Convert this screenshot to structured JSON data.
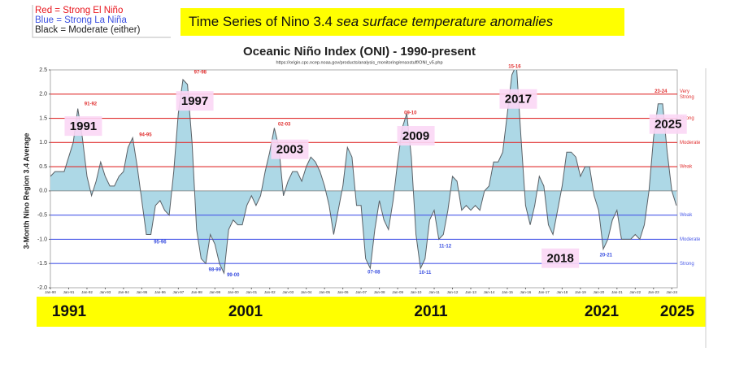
{
  "legend_box": {
    "items": [
      {
        "text": "Red = Strong El Niño",
        "color": "#e8141c"
      },
      {
        "text": "Blue = Strong La Niña",
        "color": "#3a4fe0"
      },
      {
        "text": "Black = Moderate (either)",
        "color": "#222222"
      }
    ]
  },
  "banner": {
    "text": "Time Series of Nino 3.4 ",
    "italic": "sea surface temperature anomalies"
  },
  "chart_data": {
    "type": "area",
    "title": "Oceanic Niño Index (ONI) - 1990-present",
    "subtitle": "https://origin.cpc.ncep.noaa.gov/products/analysis_monitoring/ensostuff/ONI_v5.php",
    "y_label": "3-Month Nino Region 3.4 Average",
    "color": "#add8e6",
    "line_color": "#5a6066",
    "x": [
      1990,
      1990.25,
      1990.5,
      1990.75,
      1991,
      1991.25,
      1991.5,
      1991.75,
      1992,
      1992.25,
      1992.5,
      1992.75,
      1993,
      1993.25,
      1993.5,
      1993.75,
      1994,
      1994.25,
      1994.5,
      1994.75,
      1995,
      1995.25,
      1995.5,
      1995.75,
      1996,
      1996.25,
      1996.5,
      1996.75,
      1997,
      1997.25,
      1997.5,
      1997.75,
      1998,
      1998.25,
      1998.5,
      1998.75,
      1999,
      1999.25,
      1999.5,
      1999.75,
      2000,
      2000.25,
      2000.5,
      2000.75,
      2001,
      2001.25,
      2001.5,
      2001.75,
      2002,
      2002.25,
      2002.5,
      2002.75,
      2003,
      2003.25,
      2003.5,
      2003.75,
      2004,
      2004.25,
      2004.5,
      2004.75,
      2005,
      2005.25,
      2005.5,
      2005.75,
      2006,
      2006.25,
      2006.5,
      2006.75,
      2007,
      2007.25,
      2007.5,
      2007.75,
      2008,
      2008.25,
      2008.5,
      2008.75,
      2009,
      2009.25,
      2009.5,
      2009.75,
      2010,
      2010.25,
      2010.5,
      2010.75,
      2011,
      2011.25,
      2011.5,
      2011.75,
      2012,
      2012.25,
      2012.5,
      2012.75,
      2013,
      2013.25,
      2013.5,
      2013.75,
      2014,
      2014.25,
      2014.5,
      2014.75,
      2015,
      2015.25,
      2015.5,
      2015.75,
      2016,
      2016.25,
      2016.5,
      2016.75,
      2017,
      2017.25,
      2017.5,
      2017.75,
      2018,
      2018.25,
      2018.5,
      2018.75,
      2019,
      2019.25,
      2019.5,
      2019.75,
      2020,
      2020.25,
      2020.5,
      2020.75,
      2021,
      2021.25,
      2021.5,
      2021.75,
      2022,
      2022.25,
      2022.5,
      2022.75,
      2023,
      2023.25,
      2023.5,
      2023.75,
      2024,
      2024.25
    ],
    "values": [
      0.3,
      0.4,
      0.4,
      0.4,
      0.7,
      1.0,
      1.7,
      1.1,
      0.3,
      -0.1,
      0.2,
      0.6,
      0.3,
      0.1,
      0.1,
      0.3,
      0.4,
      0.9,
      1.1,
      0.5,
      -0.2,
      -0.9,
      -0.9,
      -0.3,
      -0.2,
      -0.4,
      -0.5,
      0.4,
      1.6,
      2.3,
      2.2,
      1.0,
      -0.8,
      -1.4,
      -1.5,
      -0.9,
      -1.1,
      -1.5,
      -1.7,
      -0.8,
      -0.6,
      -0.7,
      -0.7,
      -0.3,
      -0.1,
      -0.3,
      -0.1,
      0.4,
      0.8,
      1.3,
      0.9,
      -0.1,
      0.2,
      0.4,
      0.4,
      0.2,
      0.5,
      0.7,
      0.6,
      0.4,
      0.1,
      -0.3,
      -0.9,
      -0.4,
      0.1,
      0.9,
      0.7,
      -0.3,
      -0.3,
      -1.4,
      -1.6,
      -0.8,
      -0.2,
      -0.6,
      -0.8,
      -0.2,
      0.6,
      1.3,
      1.6,
      0.7,
      -0.9,
      -1.6,
      -1.4,
      -0.6,
      -0.4,
      -1.0,
      -0.9,
      -0.4,
      0.3,
      0.2,
      -0.4,
      -0.3,
      -0.4,
      -0.3,
      -0.4,
      0.0,
      0.1,
      0.6,
      0.6,
      0.8,
      1.6,
      2.4,
      2.6,
      1.1,
      -0.3,
      -0.7,
      -0.3,
      0.3,
      0.1,
      -0.7,
      -0.9,
      -0.4,
      0.1,
      0.8,
      0.8,
      0.7,
      0.3,
      0.5,
      0.5,
      -0.1,
      -0.4,
      -1.2,
      -1.0,
      -0.6,
      -0.4,
      -1.0,
      -1.0,
      -1.0,
      -0.9,
      -1.0,
      -0.7,
      0.0,
      1.1,
      1.8,
      1.8,
      0.8,
      0.0,
      -0.3
    ],
    "xlim": [
      1990,
      2024.3
    ],
    "xticks": [
      {
        "value": 1990,
        "label": "Jan-90"
      },
      {
        "value": 1991,
        "label": "Jan-91"
      },
      {
        "value": 1992,
        "label": "Jan-92"
      },
      {
        "value": 1993,
        "label": "Jan-93"
      },
      {
        "value": 1994,
        "label": "Jan-94"
      },
      {
        "value": 1995,
        "label": "Jan-95"
      },
      {
        "value": 1996,
        "label": "Jan-96"
      },
      {
        "value": 1997,
        "label": "Jan-97"
      },
      {
        "value": 1998,
        "label": "Jan-98"
      },
      {
        "value": 1999,
        "label": "Jan-99"
      },
      {
        "value": 2000,
        "label": "Jan-00"
      },
      {
        "value": 2001,
        "label": "Jan-01"
      },
      {
        "value": 2002,
        "label": "Jan-02"
      },
      {
        "value": 2003,
        "label": "Jan-03"
      },
      {
        "value": 2004,
        "label": "Jan-04"
      },
      {
        "value": 2005,
        "label": "Jan-05"
      },
      {
        "value": 2006,
        "label": "Jan-06"
      },
      {
        "value": 2007,
        "label": "Jan-07"
      },
      {
        "value": 2008,
        "label": "Jan-08"
      },
      {
        "value": 2009,
        "label": "Jan-09"
      },
      {
        "value": 2010,
        "label": "Jan-10"
      },
      {
        "value": 2011,
        "label": "Jan-11"
      },
      {
        "value": 2012,
        "label": "Jan-12"
      },
      {
        "value": 2013,
        "label": "Jan-13"
      },
      {
        "value": 2014,
        "label": "Jan-14"
      },
      {
        "value": 2015,
        "label": "Jan-15"
      },
      {
        "value": 2016,
        "label": "Jan-16"
      },
      {
        "value": 2017,
        "label": "Jan-17"
      },
      {
        "value": 2018,
        "label": "Jan-18"
      },
      {
        "value": 2019,
        "label": "Jan-19"
      },
      {
        "value": 2020,
        "label": "Jan-20"
      },
      {
        "value": 2021,
        "label": "Jan-21"
      },
      {
        "value": 2022,
        "label": "Jan-22"
      },
      {
        "value": 2023,
        "label": "Jan-23"
      },
      {
        "value": 2024,
        "label": "Jan-24"
      }
    ],
    "ylim": [
      -2,
      2.5
    ],
    "yticks": [
      2.5,
      {
        "value": 2,
        "label": "2.0"
      },
      1.5,
      {
        "value": 1,
        "label": "1.0"
      },
      0.5,
      {
        "value": 0,
        "label": "0.0"
      },
      -0.5,
      {
        "value": -1,
        "label": "-1.0"
      },
      -1.5,
      {
        "value": -2,
        "label": "-2.0"
      }
    ],
    "reference_lines": [
      {
        "value": 2.0,
        "color": "#e03030",
        "label": [
          "Very",
          "Strong"
        ]
      },
      {
        "value": 1.5,
        "color": "#e03030",
        "label": [
          "Strong"
        ]
      },
      {
        "value": 1.0,
        "color": "#e03030",
        "label": [
          "Moderate"
        ]
      },
      {
        "value": 0.5,
        "color": "#e03030",
        "label": [
          "Weak"
        ]
      },
      {
        "value": -0.5,
        "color": "#4a5ae8",
        "label": [
          "Weak"
        ]
      },
      {
        "value": -1.0,
        "color": "#4a5ae8",
        "label": [
          "Moderate"
        ]
      },
      {
        "value": -1.5,
        "color": "#4a5ae8",
        "label": [
          "Strong"
        ]
      }
    ],
    "annotations": [
      {
        "text": "91-92",
        "x": 1992.2,
        "y": 1.8
      },
      {
        "text": "97-98",
        "x": 1998.2,
        "y": 2.45
      },
      {
        "text": "94-95",
        "x": 1995.2,
        "y": 1.16
      },
      {
        "text": "02-03",
        "x": 2002.8,
        "y": 1.38
      },
      {
        "text": "09-10",
        "x": 2009.7,
        "y": 1.61
      },
      {
        "text": "15-16",
        "x": 2015.4,
        "y": 2.57
      },
      {
        "text": "23-24",
        "x": 2023.4,
        "y": 2.06
      },
      {
        "text": "95-96",
        "x": 1996.0,
        "y": -1.06
      },
      {
        "text": "98-99",
        "x": 1999.0,
        "y": -1.63
      },
      {
        "text": "99-00",
        "x": 2000.0,
        "y": -1.74
      },
      {
        "text": "07-08",
        "x": 2007.7,
        "y": -1.68
      },
      {
        "text": "10-11",
        "x": 2010.5,
        "y": -1.69
      },
      {
        "text": "11-12",
        "x": 2011.6,
        "y": -1.14
      },
      {
        "text": "20-21",
        "x": 2020.4,
        "y": -1.33
      }
    ],
    "highlights": [
      {
        "text": "1991",
        "x": 1991.8,
        "y": 1.34
      },
      {
        "text": "1997",
        "x": 1997.9,
        "y": 1.86
      },
      {
        "text": "2003",
        "x": 2003.1,
        "y": 0.86
      },
      {
        "text": "2009",
        "x": 2010.0,
        "y": 1.14
      },
      {
        "text": "2017",
        "x": 2015.6,
        "y": 1.9
      },
      {
        "text": "2025",
        "x": 2023.8,
        "y": 1.38
      },
      {
        "text": "2018",
        "x": 2017.9,
        "y": -1.39
      }
    ]
  },
  "footer_years": [
    "1991",
    "2001",
    "2011",
    "2021",
    "2025"
  ]
}
